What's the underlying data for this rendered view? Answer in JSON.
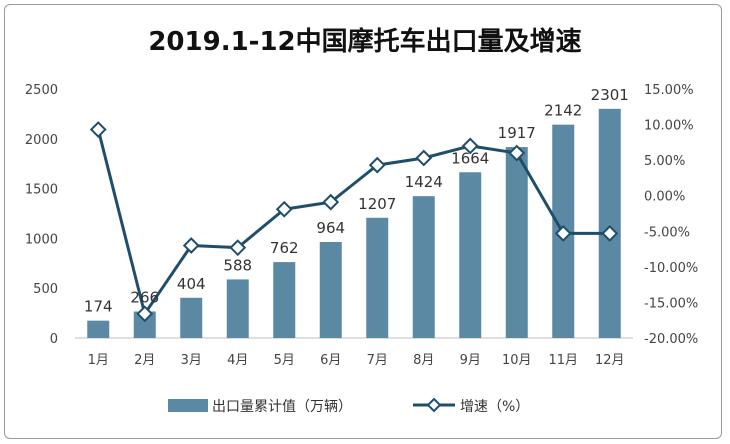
{
  "chart_data": {
    "type": "bar+line",
    "title": "2019.1-12中国摩托车出口量及增速",
    "categories": [
      "1月",
      "2月",
      "3月",
      "4月",
      "5月",
      "6月",
      "7月",
      "8月",
      "9月",
      "10月",
      "11月",
      "12月"
    ],
    "series": [
      {
        "name": "出口量累计值（万辆）",
        "type": "bar",
        "axis": "left",
        "values": [
          174,
          266,
          404,
          588,
          762,
          964,
          1207,
          1424,
          1664,
          1917,
          2142,
          2301
        ],
        "labels": [
          "174",
          "266",
          "404",
          "588",
          "762",
          "964",
          "1207",
          "1424",
          "1664",
          "1917",
          "2142",
          "2301"
        ]
      },
      {
        "name": "增速（%）",
        "type": "line",
        "axis": "right",
        "values": [
          9.3,
          -16.6,
          -7.0,
          -7.3,
          -1.9,
          -0.9,
          4.3,
          5.3,
          7.0,
          6.0,
          -5.3,
          -5.3
        ]
      }
    ],
    "left_axis": {
      "min": 0,
      "max": 2500,
      "step": 500,
      "ticks": [
        "0",
        "500",
        "1000",
        "1500",
        "2000",
        "2500"
      ]
    },
    "right_axis": {
      "min": -20,
      "max": 15,
      "step": 5,
      "ticks": [
        "-20.00%",
        "-15.00%",
        "-10.00%",
        "-5.00%",
        "0.00%",
        "5.00%",
        "10.00%",
        "15.00%"
      ]
    },
    "legend": {
      "position": "bottom",
      "bar_label": "出口量累计值（万辆）",
      "line_label": "增速（%）"
    },
    "colors": {
      "bar": "#5b89a3",
      "line": "#1f4e6b",
      "marker_fill": "#ffffff"
    }
  }
}
